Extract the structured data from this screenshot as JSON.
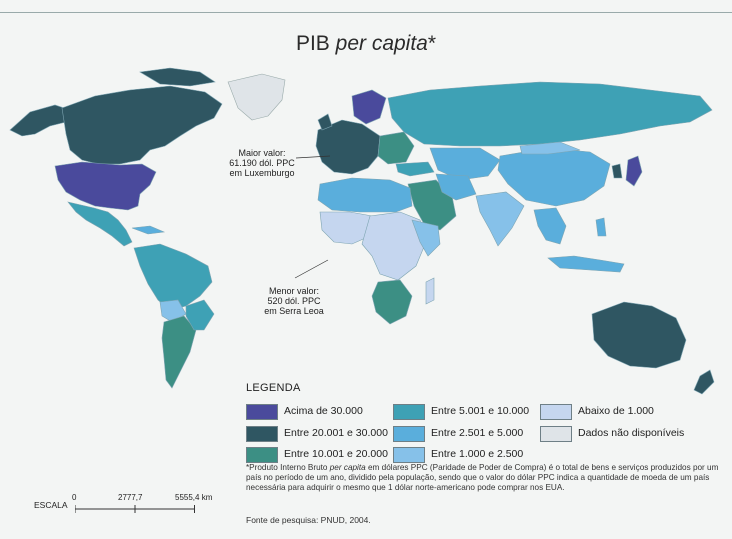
{
  "title": {
    "main": "PIB",
    "italic": "per capita",
    "suffix": "*"
  },
  "callouts": {
    "max": [
      "Maior valor:",
      "61.190 dól. PPC",
      "em Luxemburgo"
    ],
    "min": [
      "Menor valor:",
      "520 dól. PPC",
      "em Serra Leoa"
    ]
  },
  "legend": {
    "title": "LEGENDA",
    "items": [
      {
        "label": "Acima de 30.000",
        "color": "#4a4a9c"
      },
      {
        "label": "Entre 20.001 e 30.000",
        "color": "#2f5662"
      },
      {
        "label": "Entre 10.001 e 20.000",
        "color": "#3c8f84"
      },
      {
        "label": "Entre 5.001 e 10.000",
        "color": "#3ea1b5"
      },
      {
        "label": "Entre 2.501 e 5.000",
        "color": "#5aaedc"
      },
      {
        "label": "Entre 1.000 e 2.500",
        "color": "#86c1e9"
      },
      {
        "label": "Abaixo de 1.000",
        "color": "#c5d6ef"
      },
      {
        "label": "Dados não disponíveis",
        "color": "#dfe4e8"
      }
    ]
  },
  "note": {
    "prefix": "*Produto Interno Bruto ",
    "italic": "per capita",
    "rest": " em dólares PPC (Paridade de Poder de Compra) é o total de bens e serviços produzidos por um país no período de um ano, dividido pela população, sendo que o valor do dólar PPC indica a quantidade de moeda de um país necessária para adquirir o mesmo que 1 dólar norte-americano pode comprar nos EUA."
  },
  "source": "Fonte de pesquisa: PNUD, 2004.",
  "scale": {
    "label": "ESCALA",
    "ticks": [
      "0",
      "2777,7",
      "5555,4 km"
    ]
  }
}
